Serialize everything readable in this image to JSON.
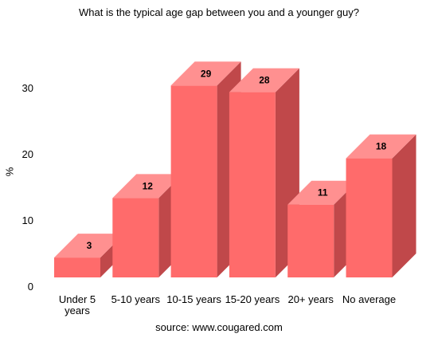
{
  "chart_data": {
    "type": "bar",
    "title": "What is the typical age gap between you and a younger guy?",
    "ylabel": "%",
    "xlabel": "",
    "categories": [
      [
        "Under 5",
        "years"
      ],
      [
        "5-10 years"
      ],
      [
        "10-15 years"
      ],
      [
        "15-20 years"
      ],
      [
        "20+ years"
      ],
      [
        "No average"
      ]
    ],
    "values": [
      3,
      12,
      29,
      28,
      11,
      18
    ],
    "data_labels": [
      "3",
      "12",
      "29",
      "28",
      "11",
      "18"
    ],
    "y_ticks": [
      "0",
      "10",
      "20",
      "30"
    ],
    "ylim": [
      0,
      40
    ],
    "style": "3d",
    "grid": false,
    "legend": "none",
    "colors": {
      "front": "#FF6B6B",
      "top": "#FF9090",
      "side": "#C0484A"
    },
    "source": "source: www.cougared.com"
  }
}
